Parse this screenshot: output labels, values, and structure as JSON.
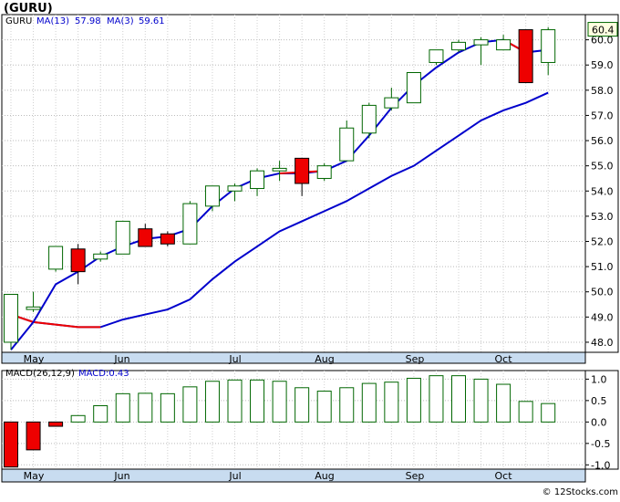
{
  "chart_data": [
    {
      "type": "candlestick",
      "title": "(GURU)",
      "legend": [
        {
          "label": "GURU",
          "color": "#000000"
        },
        {
          "label": "MA(13)",
          "value": "57.98",
          "color": "#0000cc"
        },
        {
          "label": "MA(3)",
          "value": "59.61",
          "color": "#0000cc"
        }
      ],
      "ylim": [
        47.6,
        61.0
      ],
      "y_ticks": [
        "48.0",
        "49.0",
        "50.0",
        "51.0",
        "52.0",
        "53.0",
        "54.0",
        "55.0",
        "56.0",
        "57.0",
        "58.0",
        "59.0",
        "60.0"
      ],
      "last_price": "60.4",
      "months": [
        "May",
        "Jun",
        "Jul",
        "Aug",
        "Sep",
        "Oct"
      ],
      "grid": "on",
      "candles": [
        {
          "o": 48.0,
          "h": 49.9,
          "l": 47.7,
          "c": 49.9
        },
        {
          "o": 49.3,
          "h": 50.0,
          "l": 49.2,
          "c": 49.4
        },
        {
          "o": 50.9,
          "h": 51.8,
          "l": 50.8,
          "c": 51.8
        },
        {
          "o": 51.7,
          "h": 51.9,
          "l": 50.3,
          "c": 50.8
        },
        {
          "o": 51.3,
          "h": 51.6,
          "l": 51.2,
          "c": 51.5
        },
        {
          "o": 51.5,
          "h": 52.8,
          "l": 51.5,
          "c": 52.8
        },
        {
          "o": 52.5,
          "h": 52.7,
          "l": 51.8,
          "c": 51.8
        },
        {
          "o": 52.3,
          "h": 52.4,
          "l": 51.8,
          "c": 51.9
        },
        {
          "o": 51.9,
          "h": 53.6,
          "l": 51.9,
          "c": 53.5
        },
        {
          "o": 53.4,
          "h": 54.2,
          "l": 53.2,
          "c": 54.2
        },
        {
          "o": 54.0,
          "h": 54.3,
          "l": 53.6,
          "c": 54.2
        },
        {
          "o": 54.1,
          "h": 54.9,
          "l": 53.8,
          "c": 54.8
        },
        {
          "o": 54.8,
          "h": 55.2,
          "l": 54.4,
          "c": 54.9
        },
        {
          "o": 55.3,
          "h": 55.3,
          "l": 53.8,
          "c": 54.3
        },
        {
          "o": 54.5,
          "h": 55.1,
          "l": 54.4,
          "c": 55.0
        },
        {
          "o": 55.2,
          "h": 56.8,
          "l": 55.2,
          "c": 56.5
        },
        {
          "o": 56.3,
          "h": 57.5,
          "l": 56.1,
          "c": 57.4
        },
        {
          "o": 57.3,
          "h": 58.1,
          "l": 57.2,
          "c": 57.7
        },
        {
          "o": 57.5,
          "h": 58.7,
          "l": 57.5,
          "c": 58.7
        },
        {
          "o": 59.1,
          "h": 59.6,
          "l": 59.0,
          "c": 59.6
        },
        {
          "o": 59.6,
          "h": 60.0,
          "l": 59.5,
          "c": 59.9
        },
        {
          "o": 59.8,
          "h": 60.1,
          "l": 59.0,
          "c": 60.0
        },
        {
          "o": 59.6,
          "h": 60.2,
          "l": 59.6,
          "c": 60.0
        },
        {
          "o": 60.4,
          "h": 60.4,
          "l": 58.3,
          "c": 58.3
        },
        {
          "o": 59.1,
          "h": 60.5,
          "l": 58.6,
          "c": 60.4
        }
      ],
      "series": [
        {
          "name": "MA(13)",
          "color": "#0000cc",
          "values": [
            47.7,
            48.8,
            50.3,
            50.8,
            51.4,
            51.8,
            52.1,
            52.2,
            52.5,
            53.4,
            54.1,
            54.5,
            54.7,
            54.7,
            54.8,
            55.2,
            56.2,
            57.3,
            58.2,
            58.9,
            59.5,
            59.9,
            60.0,
            59.5,
            59.6
          ]
        },
        {
          "name": "MA(3)",
          "color_changed": "#ee0000",
          "color": "#0000cc",
          "values": [
            null,
            null,
            null,
            null,
            null,
            null,
            null,
            null,
            null,
            null,
            null,
            null,
            null,
            null,
            null,
            null,
            null,
            null,
            null,
            null,
            null,
            null,
            null,
            null,
            null
          ]
        }
      ],
      "ma_slow": [
        49.1,
        48.8,
        48.7,
        48.6,
        48.6,
        48.9,
        49.1,
        49.3,
        49.7,
        50.5,
        51.2,
        51.8,
        52.4,
        52.8,
        53.2,
        53.6,
        54.1,
        54.6,
        55.0,
        55.6,
        56.2,
        56.8,
        57.2,
        57.5,
        57.9
      ],
      "ma_slow_red_points": 4
    },
    {
      "type": "bar",
      "legend": [
        {
          "label": "MACD(26,12,9)",
          "color": "#000000"
        },
        {
          "label": "MACD",
          "value": "0.43",
          "color": "#0000cc"
        }
      ],
      "ylim": [
        -1.1,
        1.2
      ],
      "y_ticks": [
        "1.0",
        "0.5",
        "0.0",
        "-0.5",
        "-1.0"
      ],
      "months": [
        "May",
        "Jun",
        "Jul",
        "Aug",
        "Sep",
        "Oct"
      ],
      "values": [
        -1.05,
        -0.65,
        -0.1,
        0.15,
        0.38,
        0.66,
        0.67,
        0.66,
        0.82,
        0.95,
        0.98,
        0.98,
        0.95,
        0.8,
        0.72,
        0.8,
        0.9,
        0.93,
        1.02,
        1.08,
        1.08,
        1.0,
        0.88,
        0.48,
        0.43
      ]
    }
  ],
  "footer": "© 12Stocks.com"
}
